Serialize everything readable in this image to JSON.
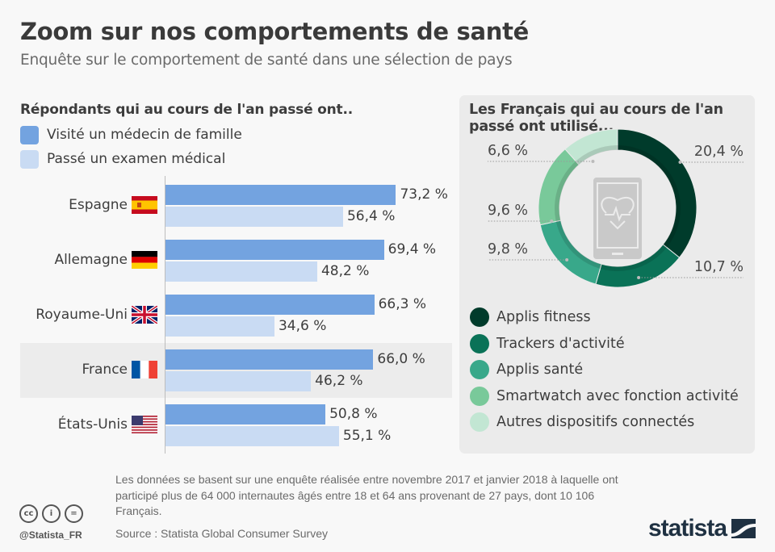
{
  "header": {
    "title": "Zoom sur nos comportements de santé",
    "subtitle": "Enquête sur le comportement de santé dans une sélection de pays"
  },
  "bar_section": {
    "heading": "Répondants qui au cours de l'an passé ont..",
    "highlighted_country": "France"
  },
  "donut_section": {
    "heading": "Les Français qui au cours de l'an passé ont utilisé..."
  },
  "colors": {
    "bar_primary": "#73a3e0",
    "bar_secondary": "#c9dbf3",
    "donut": [
      "#003b2b",
      "#0a7257",
      "#38a88a",
      "#79c99a",
      "#c2e6d3"
    ]
  },
  "chart_data": [
    {
      "type": "bar",
      "orientation": "horizontal",
      "title": "Répondants qui au cours de l'an passé ont..",
      "categories": [
        "Espagne",
        "Allemagne",
        "Royaume-Uni",
        "France",
        "États-Unis"
      ],
      "series": [
        {
          "name": "Visité un médecin de famille",
          "values": [
            73.2,
            69.4,
            66.3,
            66.0,
            50.8
          ],
          "labels": [
            "73,2 %",
            "69,4 %",
            "66,3 %",
            "66,0 %",
            "50,8 %"
          ]
        },
        {
          "name": "Passé un examen médical",
          "values": [
            56.4,
            48.2,
            34.6,
            46.2,
            55.1
          ],
          "labels": [
            "56,4 %",
            "48,2 %",
            "34,6 %",
            "46,2 %",
            "55,1 %"
          ]
        }
      ],
      "xlim": [
        0,
        100
      ],
      "unit": "%",
      "grid": false,
      "legend": "top-left"
    },
    {
      "type": "pie",
      "donut": true,
      "title": "Les Français qui au cours de l'an passé ont utilisé...",
      "categories": [
        "Applis fitness",
        "Trackers d'activité",
        "Applis santé",
        "Smartwatch avec fonction activité",
        "Autres dispositifs connectés"
      ],
      "values": [
        20.4,
        10.7,
        9.8,
        9.6,
        6.6
      ],
      "labels": [
        "20,4 %",
        "10,7 %",
        "9,8 %",
        "9,6 %",
        "6,6 %"
      ],
      "unit": "%",
      "legend": "bottom",
      "center_icon": "smartphone-heart-icon"
    }
  ],
  "footer": {
    "note": "Les données se basent sur une enquête réalisée entre novembre 2017 et janvier 2018 à laquelle ont participé plus de 64 000 internautes âgés entre 18 et 64 ans provenant de 27 pays, dont 10 106 Français.",
    "source": "Source : Statista Global Consumer Survey",
    "handle": "@Statista_FR",
    "logo": "statista",
    "cc_icons": [
      "cc",
      "i",
      "="
    ]
  }
}
